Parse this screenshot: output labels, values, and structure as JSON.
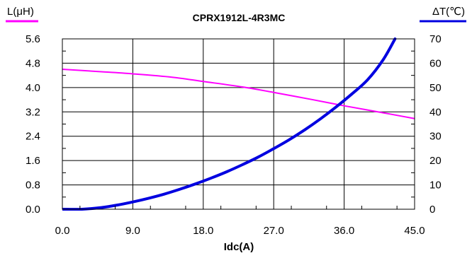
{
  "chart_data": {
    "type": "line",
    "title": "CPRX1912L-4R3MC",
    "xlabel": "Idc(A)",
    "ylabel_left": "L(μH)",
    "ylabel_right": "ΔT(℃)",
    "xlim": [
      0,
      45
    ],
    "ylim_left": [
      0,
      5.6
    ],
    "ylim_right": [
      0,
      70
    ],
    "x_ticks": [
      "0.0",
      "9.0",
      "18.0",
      "27.0",
      "36.0",
      "45.0"
    ],
    "y_left_ticks": [
      "0.0",
      "0.8",
      "1.6",
      "2.4",
      "3.2",
      "4.0",
      "4.8",
      "5.6"
    ],
    "y_right_ticks": [
      "0",
      "10",
      "20",
      "30",
      "40",
      "50",
      "60",
      "70"
    ],
    "grid": true,
    "series": [
      {
        "axis": "left",
        "color": "#ff00ff",
        "x": [
          0,
          5,
          9,
          14,
          18,
          23,
          27,
          32,
          36,
          41,
          45
        ],
        "y": [
          4.6,
          4.52,
          4.45,
          4.34,
          4.2,
          4.02,
          3.84,
          3.6,
          3.4,
          3.17,
          2.98
        ]
      },
      {
        "axis": "right",
        "color": "#0000e0",
        "x": [
          0,
          2.5,
          5,
          7,
          9,
          11,
          13,
          15,
          17,
          19,
          21,
          23,
          25,
          27,
          29,
          31,
          33,
          35,
          37,
          39,
          41,
          42.5
        ],
        "y": [
          0,
          0,
          0.7,
          1.7,
          3.0,
          4.5,
          6.2,
          8.2,
          10.4,
          12.8,
          15.4,
          18.3,
          21.4,
          24.9,
          28.6,
          32.7,
          37.2,
          42.1,
          47.4,
          53.2,
          61.5,
          70
        ]
      }
    ]
  }
}
